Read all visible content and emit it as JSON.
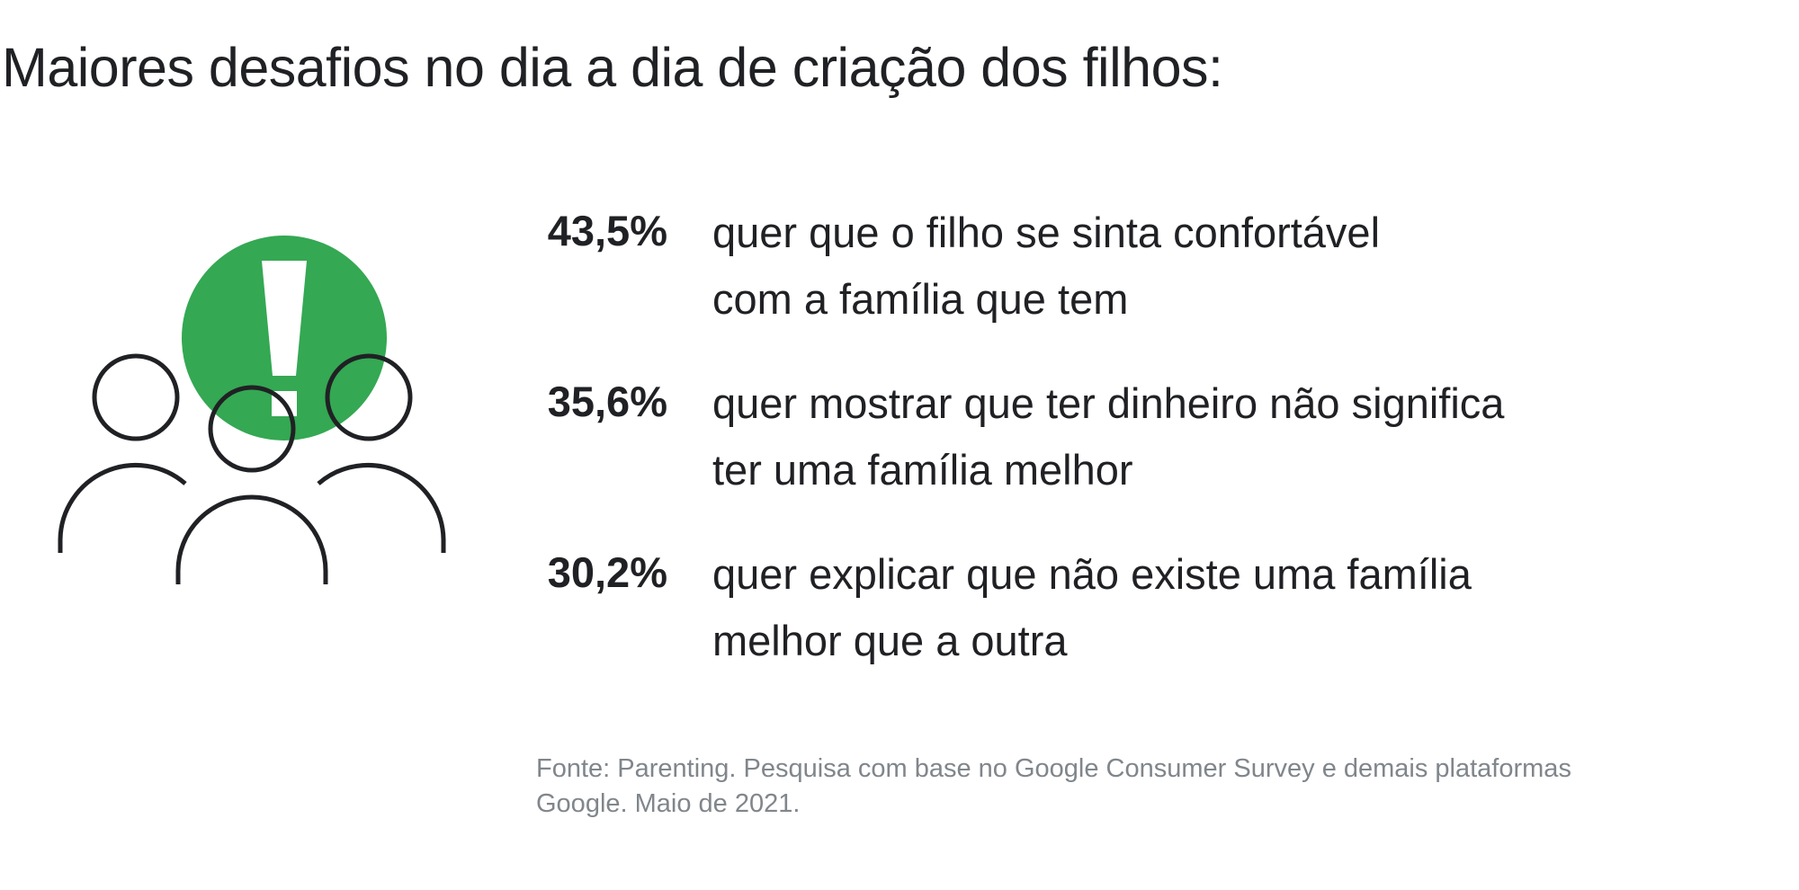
{
  "title": "Maiores desafios no dia a dia de criação dos filhos:",
  "illustration": {
    "icons": [
      "alert-exclamation-icon",
      "people-group-icon"
    ],
    "accent_color": "#34a853",
    "outline_color": "#202124"
  },
  "stats": [
    {
      "value": "43,5%",
      "lines": [
        "quer que o filho se sinta confortável",
        "com a família que tem"
      ]
    },
    {
      "value": "35,6%",
      "lines": [
        "quer mostrar que ter dinheiro não significa",
        "ter uma família melhor"
      ]
    },
    {
      "value": "30,2%",
      "lines": [
        "quer explicar que não existe uma família",
        "melhor que a outra"
      ]
    }
  ],
  "source": {
    "lines": [
      "Fonte: Parenting. Pesquisa com base no Google Consumer Survey e demais plataformas",
      "Google. Maio de 2021."
    ]
  },
  "colors": {
    "text": "#202124",
    "muted": "#80868b",
    "accent": "#34a853"
  }
}
